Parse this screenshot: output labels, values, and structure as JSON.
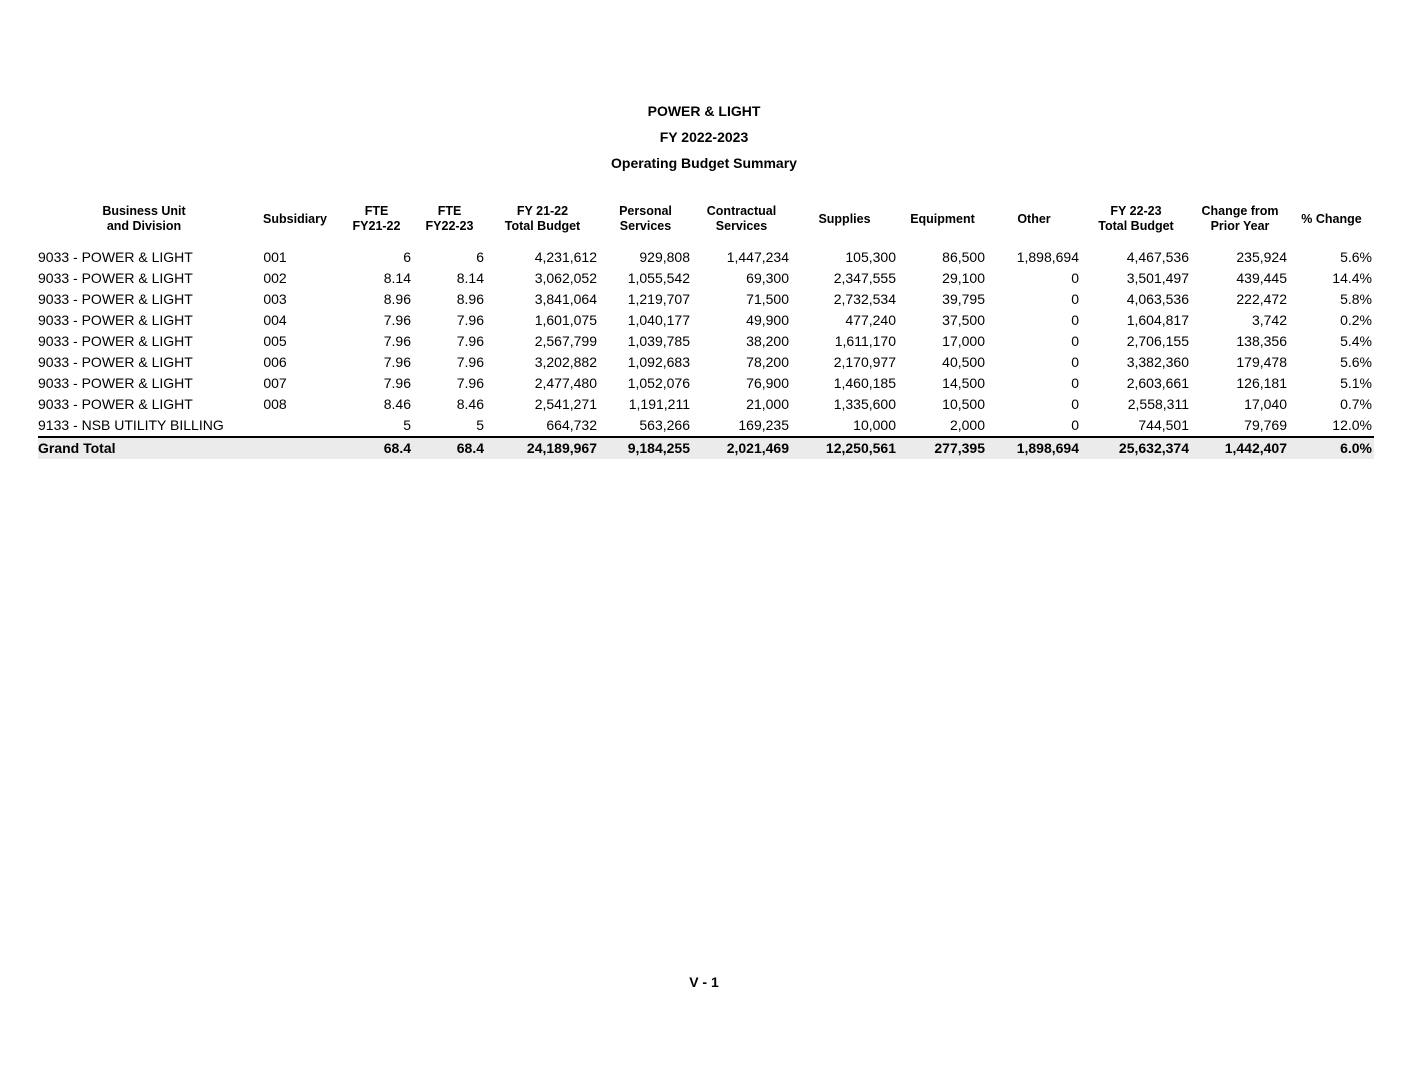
{
  "title": {
    "line1": "POWER & LIGHT",
    "line2": "FY 2022-2023",
    "line3": "Operating Budget Summary"
  },
  "table": {
    "columns": [
      {
        "id": "business-unit-and-division",
        "lines": [
          "Business Unit",
          "and Division"
        ]
      },
      {
        "id": "subsidiary",
        "lines": [
          "Subsidiary"
        ]
      },
      {
        "id": "fte-fy21-22",
        "lines": [
          "FTE",
          "FY21-22"
        ]
      },
      {
        "id": "fte-fy22-23",
        "lines": [
          "FTE",
          "FY22-23"
        ]
      },
      {
        "id": "fy21-22-total-budget",
        "lines": [
          "FY 21-22",
          "Total Budget"
        ]
      },
      {
        "id": "personal-services",
        "lines": [
          "Personal",
          "Services"
        ]
      },
      {
        "id": "contractual-services",
        "lines": [
          "Contractual",
          "Services"
        ]
      },
      {
        "id": "supplies",
        "lines": [
          "Supplies"
        ]
      },
      {
        "id": "equipment",
        "lines": [
          "Equipment"
        ]
      },
      {
        "id": "other",
        "lines": [
          "Other"
        ]
      },
      {
        "id": "fy22-23-total-budget",
        "lines": [
          "FY 22-23",
          "Total Budget"
        ]
      },
      {
        "id": "change-from-prior-year",
        "lines": [
          "Change from",
          "Prior Year"
        ]
      },
      {
        "id": "pct-change",
        "lines": [
          "% Change"
        ]
      }
    ],
    "rows": [
      [
        "9033 - POWER & LIGHT",
        "001",
        "6",
        "6",
        "4,231,612",
        "929,808",
        "1,447,234",
        "105,300",
        "86,500",
        "1,898,694",
        "4,467,536",
        "235,924",
        "5.6%"
      ],
      [
        "9033 - POWER & LIGHT",
        "002",
        "8.14",
        "8.14",
        "3,062,052",
        "1,055,542",
        "69,300",
        "2,347,555",
        "29,100",
        "0",
        "3,501,497",
        "439,445",
        "14.4%"
      ],
      [
        "9033 - POWER & LIGHT",
        "003",
        "8.96",
        "8.96",
        "3,841,064",
        "1,219,707",
        "71,500",
        "2,732,534",
        "39,795",
        "0",
        "4,063,536",
        "222,472",
        "5.8%"
      ],
      [
        "9033 - POWER & LIGHT",
        "004",
        "7.96",
        "7.96",
        "1,601,075",
        "1,040,177",
        "49,900",
        "477,240",
        "37,500",
        "0",
        "1,604,817",
        "3,742",
        "0.2%"
      ],
      [
        "9033 - POWER & LIGHT",
        "005",
        "7.96",
        "7.96",
        "2,567,799",
        "1,039,785",
        "38,200",
        "1,611,170",
        "17,000",
        "0",
        "2,706,155",
        "138,356",
        "5.4%"
      ],
      [
        "9033 - POWER & LIGHT",
        "006",
        "7.96",
        "7.96",
        "3,202,882",
        "1,092,683",
        "78,200",
        "2,170,977",
        "40,500",
        "0",
        "3,382,360",
        "179,478",
        "5.6%"
      ],
      [
        "9033 - POWER & LIGHT",
        "007",
        "7.96",
        "7.96",
        "2,477,480",
        "1,052,076",
        "76,900",
        "1,460,185",
        "14,500",
        "0",
        "2,603,661",
        "126,181",
        "5.1%"
      ],
      [
        "9033 - POWER & LIGHT",
        "008",
        "8.46",
        "8.46",
        "2,541,271",
        "1,191,211",
        "21,000",
        "1,335,600",
        "10,500",
        "0",
        "2,558,311",
        "17,040",
        "0.7%"
      ],
      [
        "9133 - NSB UTILITY BILLING",
        "",
        "5",
        "5",
        "664,732",
        "563,266",
        "169,235",
        "10,000",
        "2,000",
        "0",
        "744,501",
        "79,769",
        "12.0%"
      ]
    ],
    "grand_total": [
      "Grand Total",
      "",
      "68.4",
      "68.4",
      "24,189,967",
      "9,184,255",
      "2,021,469",
      "12,250,561",
      "277,395",
      "1,898,694",
      "25,632,374",
      "1,442,407",
      "6.0%"
    ]
  },
  "footer": {
    "page_label": "V - 1"
  },
  "colors": {
    "total_row_bg": "#ebebeb",
    "total_row_border": "#000000",
    "text": "#000000",
    "background": "#ffffff"
  }
}
